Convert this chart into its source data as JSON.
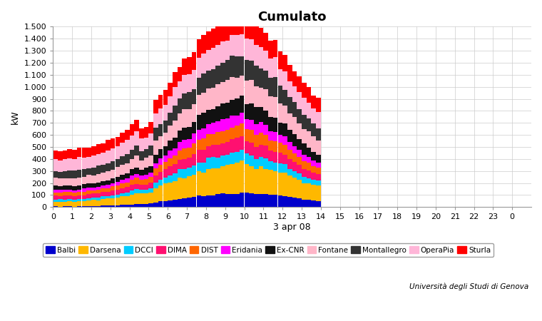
{
  "title": "Cumulato",
  "xlabel": "3 apr 08",
  "ylabel": "kW",
  "credit": "Università degli Studi di Genova",
  "ylim": [
    0,
    1500
  ],
  "ytick_vals": [
    0,
    100,
    200,
    300,
    400,
    500,
    600,
    700,
    800,
    900,
    1000,
    1100,
    1200,
    1300,
    1400,
    1500
  ],
  "ytick_labels": [
    "0",
    "100",
    "200",
    "300",
    "400",
    "500",
    "600",
    "700",
    "800",
    "900",
    "1.000",
    "1.100",
    "1.200",
    "1.300",
    "1.400",
    "1.500"
  ],
  "series_names": [
    "Balbi",
    "Darsena",
    "DCCI",
    "DIMA",
    "DIST",
    "Eridania",
    "Ex-CNR",
    "Fontane",
    "Montallegro",
    "OperaPia",
    "Sturla"
  ],
  "colors": {
    "Balbi": "#0000CC",
    "Darsena": "#FFB800",
    "DCCI": "#00CCFF",
    "DIMA": "#FF1070",
    "DIST": "#FF6600",
    "Eridania": "#FF00FF",
    "Ex-CNR": "#111111",
    "Fontane": "#FFB6C8",
    "Montallegro": "#333333",
    "OperaPia": "#FFB6D8",
    "Sturla": "#FF0000"
  },
  "n_bars_per_hour": 4,
  "peak_hour": 10,
  "background_color": "#FFFFFF",
  "grid_color": "#CCCCCC"
}
